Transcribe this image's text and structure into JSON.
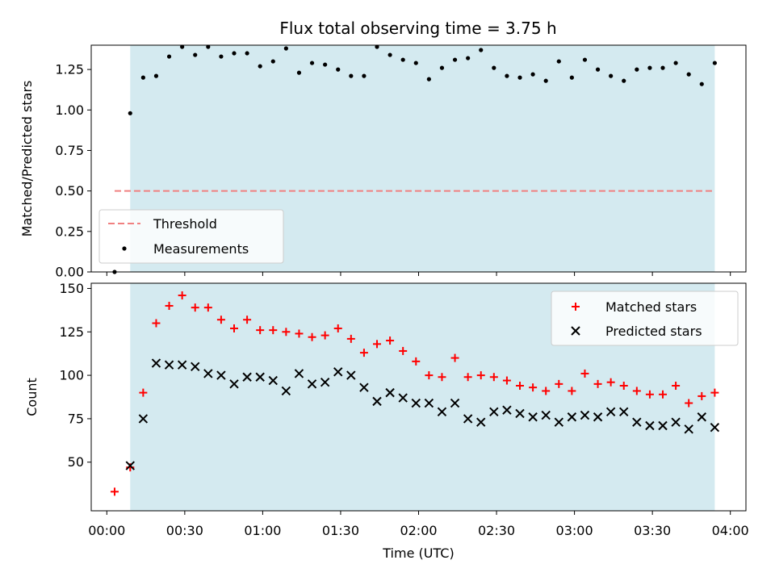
{
  "chart_data": [
    {
      "type": "scatter",
      "title": "Flux total observing time = 3.75 h",
      "ylabel": "Matched/Predicted stars",
      "xlabel": "",
      "xlim": [
        -6,
        246
      ],
      "ylim": [
        0,
        1.4
      ],
      "yticks": [
        0,
        0.25,
        0.5,
        0.75,
        1.0,
        1.25
      ],
      "ytick_labels": [
        "0.00",
        "0.25",
        "0.50",
        "0.75",
        "1.00",
        "1.25"
      ],
      "xticks": [
        0,
        30,
        60,
        90,
        120,
        150,
        180,
        210,
        240
      ],
      "shaded_span": [
        9,
        234
      ],
      "shade_color": "#d4eaf0",
      "threshold": {
        "name": "Threshold",
        "y": 0.5,
        "x": [
          3,
          234
        ],
        "color": "#f08080"
      },
      "series": [
        {
          "name": "Measurements",
          "color": "#000000",
          "x": [
            3,
            9,
            14,
            19,
            24,
            29,
            34,
            39,
            44,
            49,
            54,
            59,
            64,
            69,
            74,
            79,
            84,
            89,
            94,
            99,
            104,
            109,
            114,
            119,
            124,
            129,
            134,
            139,
            144,
            149,
            154,
            159,
            164,
            169,
            174,
            179,
            184,
            189,
            194,
            199,
            204,
            209,
            214,
            219,
            224,
            229,
            234
          ],
          "y": [
            0.0,
            0.98,
            1.2,
            1.21,
            1.33,
            1.39,
            1.34,
            1.39,
            1.33,
            1.35,
            1.35,
            1.27,
            1.3,
            1.38,
            1.23,
            1.29,
            1.28,
            1.25,
            1.21,
            1.21,
            1.39,
            1.34,
            1.31,
            1.29,
            1.19,
            1.26,
            1.31,
            1.32,
            1.37,
            1.26,
            1.21,
            1.2,
            1.22,
            1.18,
            1.3,
            1.2,
            1.31,
            1.25,
            1.21,
            1.18,
            1.25,
            1.26,
            1.26,
            1.29,
            1.22,
            1.16,
            1.29
          ]
        }
      ],
      "legend": {
        "position": "lower-left",
        "entries": [
          "Threshold",
          "Measurements"
        ]
      }
    },
    {
      "type": "scatter",
      "title": "",
      "ylabel": "Count",
      "xlabel": "Time (UTC)",
      "xlim": [
        -6,
        246
      ],
      "ylim": [
        22,
        153
      ],
      "yticks": [
        50,
        75,
        100,
        125,
        150
      ],
      "ytick_labels": [
        "50",
        "75",
        "100",
        "125",
        "150"
      ],
      "xticks": [
        0,
        30,
        60,
        90,
        120,
        150,
        180,
        210,
        240
      ],
      "xtick_labels": [
        "00:00",
        "00:30",
        "01:00",
        "01:30",
        "02:00",
        "02:30",
        "03:00",
        "03:30",
        "04:00"
      ],
      "shaded_span": [
        9,
        234
      ],
      "shade_color": "#d4eaf0",
      "series": [
        {
          "name": "Matched stars",
          "color": "#ff0000",
          "marker": "plus",
          "x": [
            3,
            9,
            14,
            19,
            24,
            29,
            34,
            39,
            44,
            49,
            54,
            59,
            64,
            69,
            74,
            79,
            84,
            89,
            94,
            99,
            104,
            109,
            114,
            119,
            124,
            129,
            134,
            139,
            144,
            149,
            154,
            159,
            164,
            169,
            174,
            179,
            184,
            189,
            194,
            199,
            204,
            209,
            214,
            219,
            224,
            229,
            234
          ],
          "y": [
            33,
            47,
            90,
            130,
            140,
            146,
            139,
            139,
            132,
            127,
            132,
            126,
            126,
            125,
            124,
            122,
            123,
            127,
            121,
            113,
            118,
            120,
            114,
            108,
            100,
            99,
            110,
            99,
            100,
            99,
            97,
            94,
            93,
            91,
            95,
            91,
            101,
            95,
            96,
            94,
            91,
            89,
            89,
            94,
            84,
            88,
            90
          ]
        },
        {
          "name": "Predicted stars",
          "color": "#000000",
          "marker": "x",
          "x": [
            9,
            14,
            19,
            24,
            29,
            34,
            39,
            44,
            49,
            54,
            59,
            64,
            69,
            74,
            79,
            84,
            89,
            94,
            99,
            104,
            109,
            114,
            119,
            124,
            129,
            134,
            139,
            144,
            149,
            154,
            159,
            164,
            169,
            174,
            179,
            184,
            189,
            194,
            199,
            204,
            209,
            214,
            219,
            224,
            229,
            234
          ],
          "y": [
            48,
            75,
            107,
            106,
            106,
            105,
            101,
            100,
            95,
            99,
            99,
            97,
            91,
            101,
            95,
            96,
            102,
            100,
            93,
            85,
            90,
            87,
            84,
            84,
            79,
            84,
            75,
            73,
            79,
            80,
            78,
            76,
            77,
            73,
            76,
            77,
            76,
            79,
            79,
            73,
            71,
            71,
            73,
            69,
            76,
            70
          ]
        }
      ],
      "legend": {
        "position": "top-right",
        "entries": [
          "Matched stars",
          "Predicted stars"
        ]
      }
    }
  ]
}
